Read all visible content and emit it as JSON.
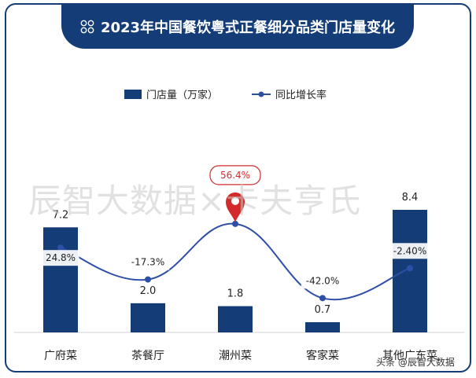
{
  "header": {
    "title": "2023年中国餐饮粤式正餐细分品类门店量变化"
  },
  "watermark": {
    "text": "辰智大数据×卡夫亨氏"
  },
  "source_mark": {
    "text": "头条 @辰智大数据"
  },
  "colors": {
    "bar": "#143d78",
    "line": "#2e4fa6",
    "callout": "#d32b2b",
    "frame": "#143d78"
  },
  "chart_data": {
    "type": "bar",
    "categories": [
      "广府菜",
      "茶餐厅",
      "潮州菜",
      "客家菜",
      "其他广东菜"
    ],
    "series": [
      {
        "name": "门店量（万家）",
        "type": "bar",
        "values": [
          7.2,
          2.0,
          1.8,
          0.7,
          8.4
        ],
        "labels": [
          "7.2",
          "2.0",
          "1.8",
          "0.7",
          "8.4"
        ]
      },
      {
        "name": "同比增长率",
        "type": "line",
        "values": [
          24.8,
          -17.3,
          56.4,
          -42.0,
          -2.4
        ],
        "labels": [
          "24.8%",
          "-17.3%",
          "56.4%",
          "-42.0%",
          "-2.40%"
        ]
      }
    ],
    "highlight": {
      "category": "潮州菜",
      "label": "56.4%"
    },
    "legend": "top-center"
  }
}
